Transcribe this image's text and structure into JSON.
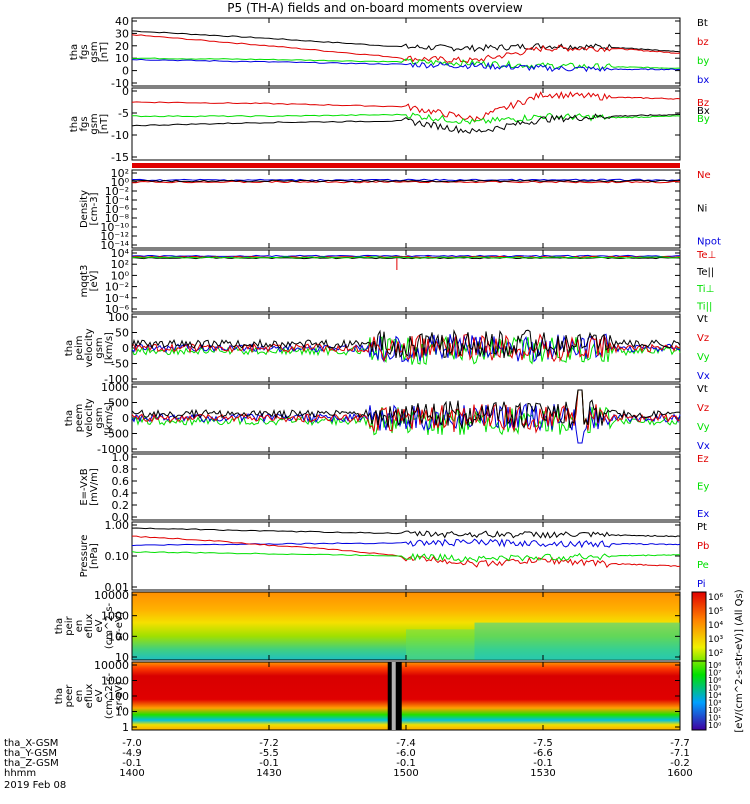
{
  "title": "P5 (TH-A) fields and on-board moments overview",
  "colors": {
    "black": "#000000",
    "red": "#e00000",
    "green": "#00e000",
    "blue": "#0000e0"
  },
  "chart_data": [
    {
      "id": "fgs_gsm",
      "type": "line",
      "ylabel": [
        "tha",
        "fgs",
        "gsm",
        "[nT]"
      ],
      "yticks": [
        "40",
        "30",
        "20",
        "10",
        "0",
        "-10"
      ],
      "ylim": [
        -10,
        40
      ],
      "legend": [
        {
          "name": "Bt",
          "color": "black"
        },
        {
          "name": "bz",
          "color": "red"
        },
        {
          "name": "by",
          "color": "green"
        },
        {
          "name": "bx",
          "color": "blue"
        }
      ],
      "series": [
        {
          "name": "Bt",
          "color": "black",
          "x": [
            1400,
            1430,
            1500,
            1515,
            1530,
            1545,
            1600
          ],
          "y": [
            32,
            26,
            19,
            18,
            20,
            19,
            15
          ]
        },
        {
          "name": "bz",
          "color": "red",
          "x": [
            1400,
            1430,
            1500,
            1515,
            1530,
            1545,
            1600
          ],
          "y": [
            29,
            20,
            10,
            8,
            18,
            18,
            14
          ]
        },
        {
          "name": "by",
          "color": "green",
          "x": [
            1400,
            1430,
            1500,
            1515,
            1530,
            1545,
            1600
          ],
          "y": [
            10,
            9,
            7,
            6,
            4,
            3,
            2
          ]
        },
        {
          "name": "bx",
          "color": "blue",
          "x": [
            1400,
            1430,
            1500,
            1515,
            1530,
            1545,
            1600
          ],
          "y": [
            9,
            7,
            5,
            4,
            2,
            1,
            1
          ]
        }
      ]
    },
    {
      "id": "fgs_gsm_2",
      "type": "line",
      "ylabel": [
        "tha",
        "fgs",
        "gsm",
        "[nT]"
      ],
      "yticks": [
        "0",
        "-5",
        "-10",
        "-15"
      ],
      "ylim": [
        -18,
        3
      ],
      "legend": [
        {
          "name": "Bz",
          "color": "red"
        },
        {
          "name": "Bx",
          "color": "black"
        },
        {
          "name": "By",
          "color": "green"
        }
      ],
      "series": [
        {
          "name": "Bz",
          "color": "red",
          "x": [
            1400,
            1430,
            1500,
            1515,
            1530,
            1545,
            1600
          ],
          "y": [
            -0.5,
            -1,
            -2,
            -6,
            2,
            1,
            0.5
          ]
        },
        {
          "name": "By",
          "color": "green",
          "x": [
            1400,
            1430,
            1500,
            1515,
            1530,
            1545,
            1600
          ],
          "y": [
            -5,
            -5,
            -4.5,
            -7,
            -5,
            -5.5,
            -5
          ]
        },
        {
          "name": "Bx",
          "color": "black",
          "x": [
            1400,
            1430,
            1500,
            1515,
            1530,
            1545,
            1600
          ],
          "y": [
            -8,
            -7,
            -6.5,
            -10,
            -6,
            -5,
            -4.5
          ]
        }
      ]
    },
    {
      "id": "density",
      "type": "line",
      "ylabel": [
        "Density",
        "[cm-3]"
      ],
      "yticks": [
        "10²",
        "10⁰",
        "10⁻²",
        "10⁻⁴",
        "10⁻⁶",
        "10⁻⁸",
        "10⁻¹⁰",
        "10⁻¹²",
        "10⁻¹⁴"
      ],
      "legend": [
        {
          "name": "Ne",
          "color": "red"
        },
        {
          "name": "Ni",
          "color": "black"
        },
        {
          "name": "Npot",
          "color": "blue"
        }
      ]
    },
    {
      "id": "mom_temp",
      "type": "line",
      "ylabel": [
        "mqqt3",
        "[eV]"
      ],
      "yticks": [
        "10⁴",
        "10²",
        "10⁰",
        "10⁻²",
        "10⁻⁴",
        "10⁻⁶"
      ],
      "legend": [
        {
          "name": "Te⊥",
          "color": "red"
        },
        {
          "name": "Te||",
          "color": "black"
        },
        {
          "name": "Ti⊥",
          "color": "green"
        },
        {
          "name": "Ti||",
          "color": "green"
        }
      ]
    },
    {
      "id": "peim_velocity",
      "type": "line",
      "ylabel": [
        "tha",
        "peim",
        "velocity",
        "gsm",
        "[km/s]"
      ],
      "yticks": [
        "100",
        "50",
        "0",
        "-50",
        "-100"
      ],
      "ylim": [
        -100,
        100
      ],
      "legend": [
        {
          "name": "Vt",
          "color": "black"
        },
        {
          "name": "Vz",
          "color": "red"
        },
        {
          "name": "Vy",
          "color": "green"
        },
        {
          "name": "Vx",
          "color": "blue"
        }
      ]
    },
    {
      "id": "peem_velocity",
      "type": "line",
      "ylabel": [
        "tha",
        "peem",
        "velocity",
        "gsm",
        "[km/s]"
      ],
      "yticks": [
        "1000",
        "500",
        "0",
        "-500",
        "-1000"
      ],
      "ylim": [
        -1000,
        1000
      ],
      "legend": [
        {
          "name": "Vt",
          "color": "black"
        },
        {
          "name": "Vz",
          "color": "red"
        },
        {
          "name": "Vy",
          "color": "green"
        },
        {
          "name": "Vx",
          "color": "blue"
        }
      ]
    },
    {
      "id": "e_field",
      "type": "line",
      "ylabel": [
        "E=-VxB",
        "[mV/m]"
      ],
      "yticks": [
        "1.0",
        "0.8",
        "0.6",
        "0.4",
        "0.2",
        "0.0"
      ],
      "ylim": [
        0,
        1
      ],
      "legend": [
        {
          "name": "Ez",
          "color": "red"
        },
        {
          "name": "Ey",
          "color": "green"
        },
        {
          "name": "Ex",
          "color": "blue"
        }
      ]
    },
    {
      "id": "pressure",
      "type": "line",
      "ylabel": [
        "Pressure",
        "[nPa]"
      ],
      "yticks": [
        "1.00",
        "0.10",
        "0.01"
      ],
      "ylim": [
        0.01,
        1.2
      ],
      "log": true,
      "legend": [
        {
          "name": "Pt",
          "color": "black"
        },
        {
          "name": "Pb",
          "color": "red"
        },
        {
          "name": "Pe",
          "color": "green"
        },
        {
          "name": "Pi",
          "color": "blue"
        }
      ],
      "series": [
        {
          "name": "Pt",
          "color": "black",
          "x": [
            1400,
            1430,
            1500,
            1515,
            1530,
            1545,
            1600
          ],
          "y": [
            0.95,
            0.75,
            0.62,
            0.6,
            0.58,
            0.55,
            0.5
          ]
        },
        {
          "name": "Pi",
          "color": "blue",
          "x": [
            1400,
            1430,
            1500,
            1515,
            1530,
            1545,
            1600
          ],
          "y": [
            0.25,
            0.28,
            0.3,
            0.32,
            0.3,
            0.28,
            0.27
          ]
        },
        {
          "name": "Pb",
          "color": "red",
          "x": [
            1400,
            1430,
            1500,
            1515,
            1530,
            1545,
            1600
          ],
          "y": [
            0.5,
            0.25,
            0.1,
            0.06,
            0.08,
            0.06,
            0.05
          ]
        },
        {
          "name": "Pe",
          "color": "green",
          "x": [
            1400,
            1430,
            1500,
            1515,
            1530,
            1545,
            1600
          ],
          "y": [
            0.15,
            0.13,
            0.11,
            0.09,
            0.1,
            0.11,
            0.12
          ]
        }
      ]
    },
    {
      "id": "peir_spec",
      "type": "heatmap",
      "ylabel": [
        "tha",
        "peir",
        "en",
        "eflux",
        "eV",
        "(cm^2-s-",
        "sr-eV)"
      ],
      "yticks": [
        "10000",
        "1000",
        "100",
        "10"
      ]
    },
    {
      "id": "peer_spec",
      "type": "heatmap",
      "ylabel": [
        "tha",
        "peer",
        "en",
        "eflux",
        "eV",
        "(cm^2-s-",
        "sr-eV)"
      ],
      "yticks": [
        "10000",
        "1000",
        "100",
        "10",
        "1"
      ]
    }
  ],
  "colorbar": {
    "label": "[eV/(cm^2-s-str-eV)] (All Qs)",
    "ticks_top": [
      "10⁶",
      "10⁵",
      "10⁴",
      "10³",
      "10²"
    ],
    "ticks_bottom": [
      "10⁸",
      "10⁷",
      "10⁶",
      "10⁵",
      "10⁴",
      "10³",
      "10²",
      "10¹",
      "10⁰"
    ]
  },
  "xaxis": {
    "rows": [
      {
        "label": "tha_X-GSM",
        "values": [
          "-7.0",
          "-7.2",
          "-7.4",
          "-7.5",
          "-7.7"
        ]
      },
      {
        "label": "tha_Y-GSM",
        "values": [
          "-4.9",
          "-5.5",
          "-6.0",
          "-6.6",
          "-7.1"
        ]
      },
      {
        "label": "tha_Z-GSM",
        "values": [
          "-0.1",
          "-0.1",
          "-0.1",
          "-0.1",
          "-0.2"
        ]
      },
      {
        "label": "hhmm",
        "values": [
          "1400",
          "1430",
          "1500",
          "1530",
          "1600"
        ]
      }
    ],
    "date": "2019 Feb 08",
    "tick_hours": [
      1400,
      1430,
      1500,
      1530,
      1600
    ]
  }
}
